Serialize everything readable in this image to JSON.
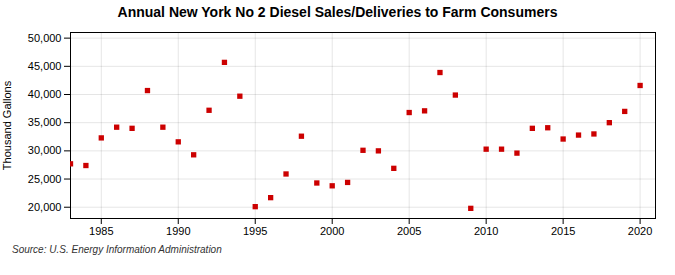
{
  "chart_data": {
    "type": "scatter",
    "title": "Annual New York No 2 Diesel Sales/Deliveries to Farm Consumers",
    "ylabel": "Thousand Gallons",
    "source": "Source: U.S. Energy Information Administration",
    "x": [
      1983,
      1984,
      1985,
      1986,
      1987,
      1988,
      1989,
      1990,
      1991,
      1992,
      1993,
      1994,
      1995,
      1996,
      1997,
      1998,
      1999,
      2000,
      2001,
      2002,
      2003,
      2004,
      2005,
      2006,
      2007,
      2008,
      2009,
      2010,
      2011,
      2012,
      2013,
      2014,
      2015,
      2016,
      2017,
      2018,
      2019,
      2020
    ],
    "values": [
      27700,
      27400,
      32300,
      34200,
      34000,
      40700,
      34200,
      31600,
      29300,
      37200,
      45700,
      39700,
      20100,
      21700,
      25900,
      32600,
      24300,
      23800,
      24400,
      30100,
      30000,
      26900,
      36800,
      37100,
      43900,
      39900,
      19800,
      30300,
      30300,
      29600,
      34000,
      34100,
      32100,
      32800,
      33000,
      35000,
      37000,
      41600
    ],
    "color": "#cc0000",
    "marker": "square",
    "xlim": [
      1983,
      2021
    ],
    "ylim": [
      18000,
      51000
    ],
    "xticks": [
      1985,
      1990,
      1995,
      2000,
      2005,
      2010,
      2015,
      2020
    ],
    "yticks": [
      {
        "value": 20000,
        "label": "20,000"
      },
      {
        "value": 25000,
        "label": "25,000"
      },
      {
        "value": 30000,
        "label": "30,000"
      },
      {
        "value": 35000,
        "label": "35,000"
      },
      {
        "value": 40000,
        "label": "40,000"
      },
      {
        "value": 45000,
        "label": "45,000"
      },
      {
        "value": 50000,
        "label": "50,000"
      }
    ],
    "grid": true
  }
}
